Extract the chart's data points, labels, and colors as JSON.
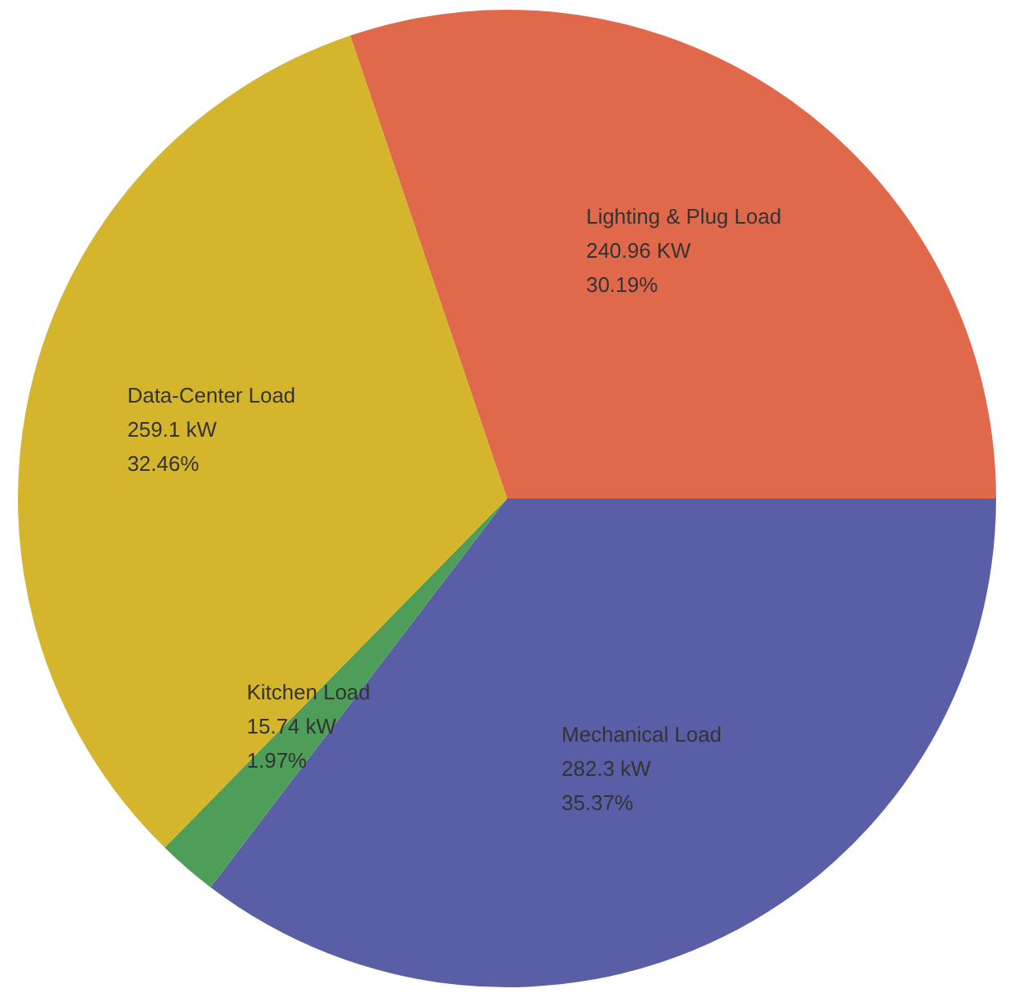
{
  "chart_data": {
    "type": "pie",
    "categories": [
      "Lighting & Plug Load",
      "Mechanical Load",
      "Kitchen Load",
      "Data-Center Load"
    ],
    "values": [
      240.96,
      282.3,
      15.74,
      259.1
    ],
    "value_labels": [
      "240.96 KW\n30.19%",
      "282.3 kW\n35.37%",
      "15.74 kW\n1.97%",
      "259.1 kW\n32.46%"
    ],
    "colors": [
      "#e0694c",
      "#5a5ea6",
      "#4e9e5a",
      "#d4b52c"
    ],
    "legend": false
  }
}
